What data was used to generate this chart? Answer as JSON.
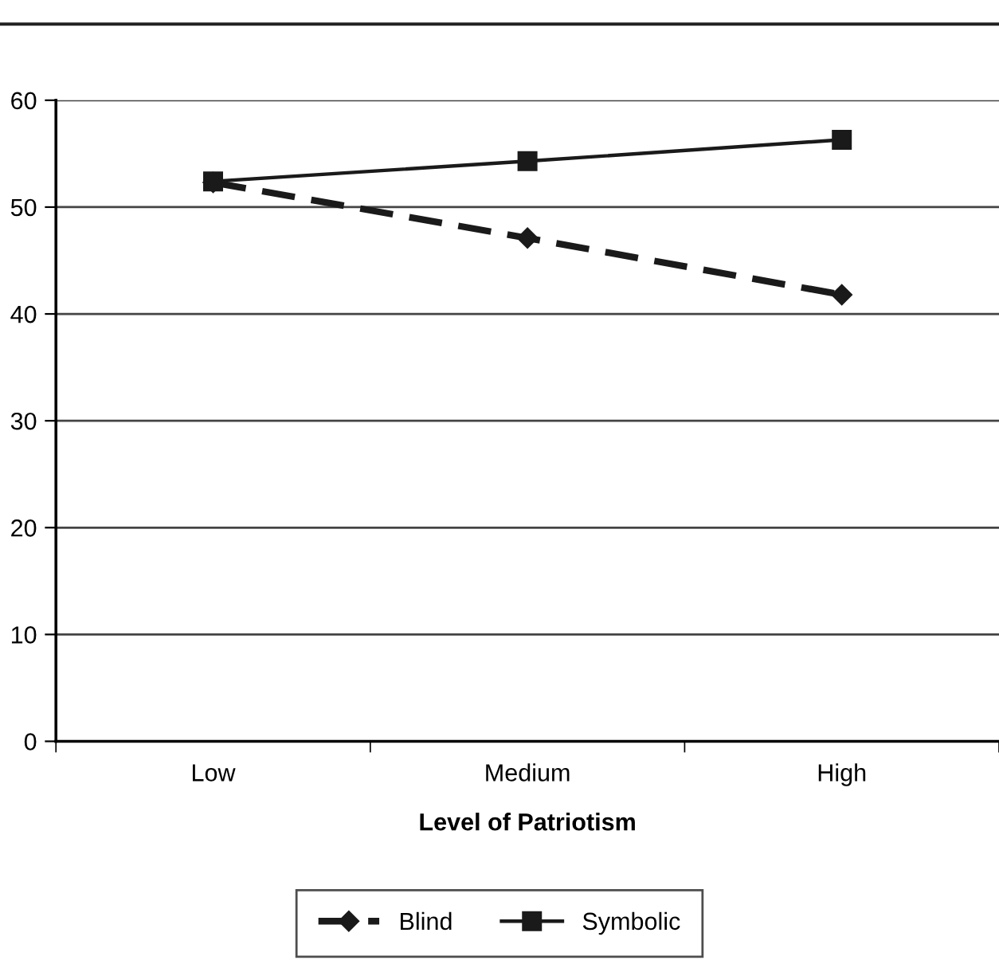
{
  "chart_data": {
    "type": "line",
    "xlabel": "Level of Patriotism",
    "categories": [
      "Low",
      "Medium",
      "High"
    ],
    "series": [
      {
        "name": "Blind",
        "color": "#1a1a1a",
        "values": [
          52.3,
          47.1,
          41.8
        ],
        "marker": "diamond",
        "line_style": "dashed"
      },
      {
        "name": "Symbolic",
        "color": "#1a1a1a",
        "values": [
          52.4,
          54.3,
          56.3
        ],
        "marker": "square",
        "line_style": "solid"
      }
    ],
    "ylim": [
      0,
      60
    ],
    "yticks": [
      0,
      10,
      20,
      30,
      40,
      50,
      60
    ],
    "grid": "y",
    "legend": "bottom"
  }
}
